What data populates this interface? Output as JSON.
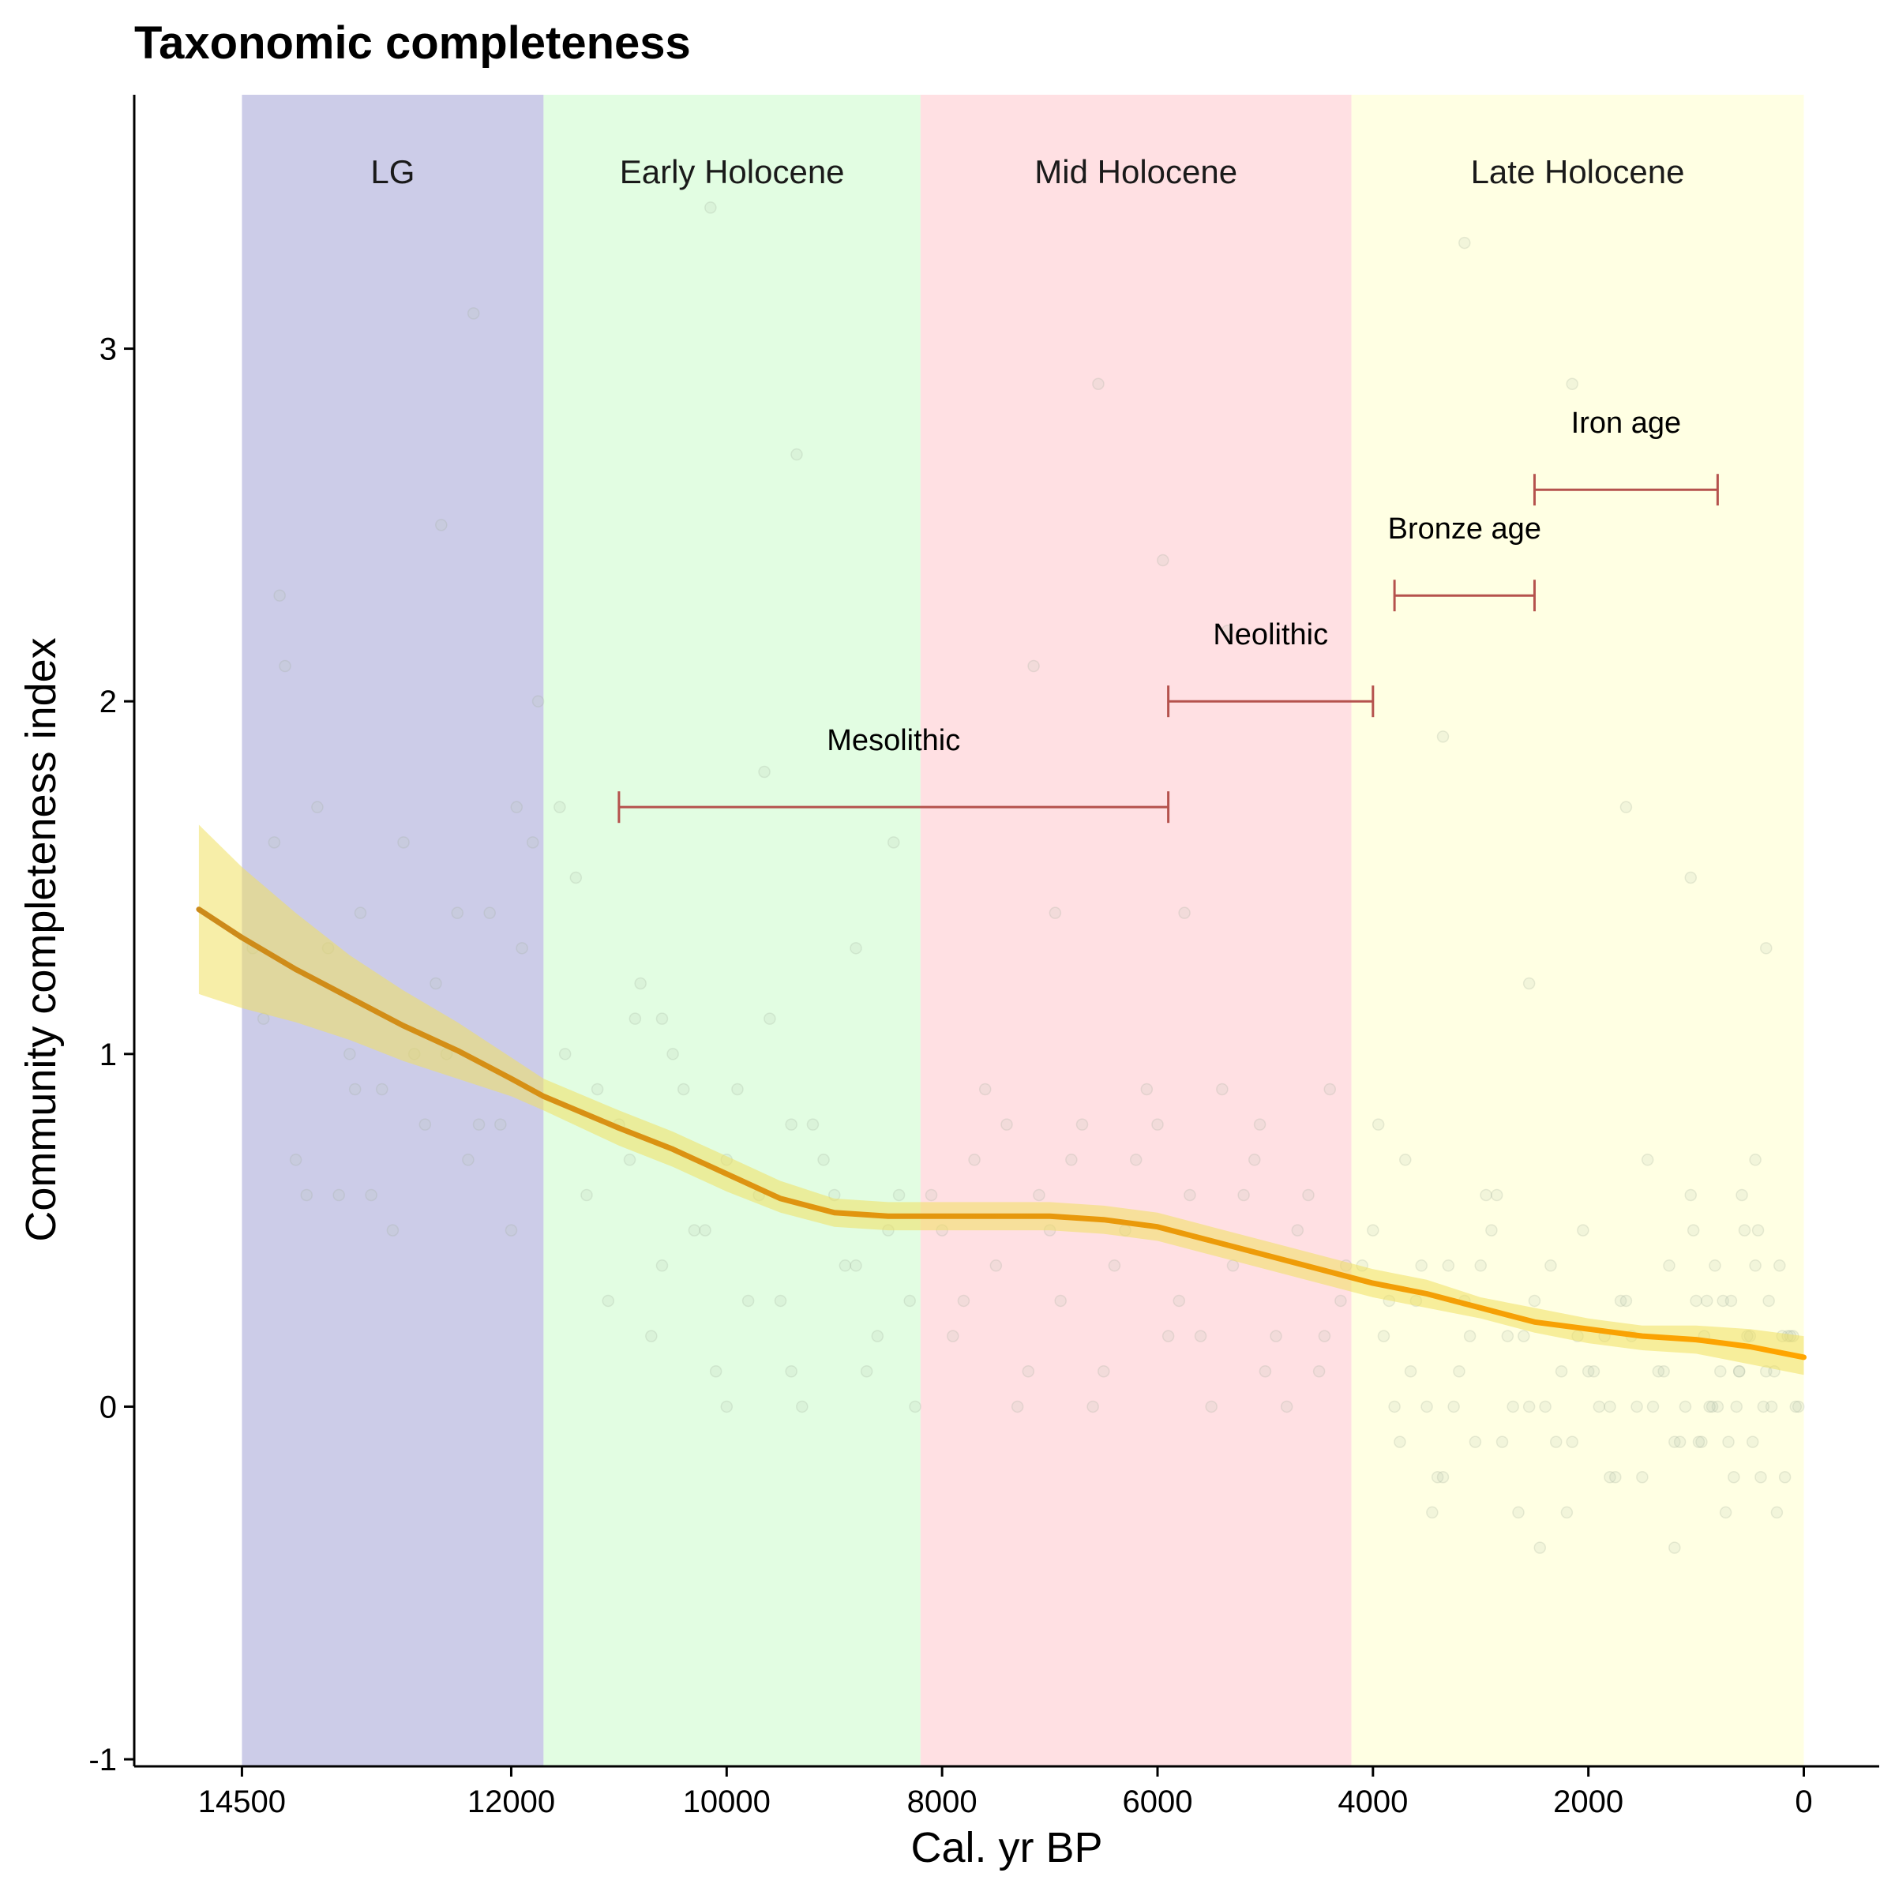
{
  "chart_data": {
    "type": "scatter",
    "title": "Taxonomic completeness",
    "xlabel": "Cal. yr BP",
    "ylabel": "Community completeness index",
    "xlim": [
      15500,
      -700
    ],
    "ylim": [
      -1.02,
      3.72
    ],
    "x_reversed": true,
    "x_ticks": [
      14500,
      12000,
      10000,
      8000,
      6000,
      4000,
      2000,
      0
    ],
    "x_tick_labels": [
      "14500",
      "12000",
      "10000",
      "8000",
      "6000",
      "4000",
      "2000",
      "0"
    ],
    "y_ticks": [
      -1,
      0,
      1,
      2,
      3
    ],
    "y_tick_labels": [
      "-1",
      "0",
      "1",
      "2",
      "3"
    ],
    "grid": false,
    "legend": "none",
    "bands": [
      {
        "label": "LG",
        "x_start": 14500,
        "x_end": 11700,
        "color": "#cccce8"
      },
      {
        "label": "Early Holocene",
        "x_start": 11700,
        "x_end": 8200,
        "color": "#e2fde2"
      },
      {
        "label": "Mid Holocene",
        "x_start": 8200,
        "x_end": 4200,
        "color": "#ffe0e3"
      },
      {
        "label": "Late Holocene",
        "x_start": 4200,
        "x_end": 0,
        "color": "#ffffe3"
      }
    ],
    "periods": [
      {
        "label": "Mesolithic",
        "x_start": 11000,
        "x_end": 5900,
        "y": 1.7
      },
      {
        "label": "Neolithic",
        "x_start": 5900,
        "x_end": 4000,
        "y": 2.0
      },
      {
        "label": "Bronze age",
        "x_start": 3800,
        "x_end": 2500,
        "y": 2.3
      },
      {
        "label": "Iron age",
        "x_start": 2500,
        "x_end": 800,
        "y": 2.6
      }
    ],
    "trend": {
      "x": [
        14900,
        14500,
        14000,
        13500,
        13000,
        12500,
        12000,
        11700,
        11000,
        10500,
        10000,
        9500,
        9000,
        8500,
        8200,
        7500,
        7000,
        6500,
        6000,
        5500,
        5000,
        4500,
        4000,
        3500,
        3000,
        2500,
        2000,
        1500,
        1000,
        500,
        0
      ],
      "y": [
        1.41,
        1.33,
        1.24,
        1.16,
        1.08,
        1.01,
        0.93,
        0.88,
        0.79,
        0.73,
        0.66,
        0.59,
        0.55,
        0.54,
        0.54,
        0.54,
        0.54,
        0.53,
        0.51,
        0.47,
        0.43,
        0.39,
        0.35,
        0.32,
        0.28,
        0.24,
        0.22,
        0.2,
        0.19,
        0.17,
        0.14
      ],
      "lower": [
        1.17,
        1.13,
        1.09,
        1.04,
        0.98,
        0.93,
        0.88,
        0.84,
        0.74,
        0.68,
        0.61,
        0.55,
        0.51,
        0.5,
        0.5,
        0.5,
        0.5,
        0.49,
        0.47,
        0.43,
        0.39,
        0.35,
        0.31,
        0.28,
        0.25,
        0.21,
        0.18,
        0.16,
        0.15,
        0.12,
        0.09
      ],
      "upper": [
        1.65,
        1.53,
        1.4,
        1.28,
        1.18,
        1.09,
        0.99,
        0.93,
        0.84,
        0.78,
        0.71,
        0.64,
        0.59,
        0.58,
        0.58,
        0.58,
        0.58,
        0.57,
        0.55,
        0.51,
        0.47,
        0.43,
        0.39,
        0.36,
        0.31,
        0.28,
        0.25,
        0.23,
        0.23,
        0.22,
        0.2
      ],
      "line_color_start": "#cc8a1a",
      "line_color_end": "#ffa500",
      "band_color": "#f0e060"
    },
    "points": {
      "x": [
        14400,
        14200,
        14000,
        13800,
        13600,
        13400,
        13200,
        13000,
        12800,
        12600,
        12400,
        12200,
        12000,
        11900,
        14300,
        13900,
        13500,
        13100,
        12700,
        12300,
        11950,
        14100,
        13700,
        13300,
        12900,
        12500,
        12100,
        11800,
        11500,
        11300,
        11000,
        10800,
        10600,
        10400,
        10200,
        10000,
        9800,
        9600,
        9400,
        9200,
        9000,
        8800,
        8600,
        8400,
        8250,
        11400,
        11100,
        10900,
        10700,
        10500,
        10300,
        10100,
        9900,
        9700,
        9500,
        9300,
        9100,
        8900,
        8700,
        8500,
        8300,
        11200,
        10600,
        10000,
        9400,
        8800,
        8100,
        7900,
        7700,
        7500,
        7300,
        7100,
        6900,
        6700,
        6500,
        6300,
        6100,
        5900,
        5700,
        5500,
        5300,
        5100,
        4900,
        4700,
        4500,
        4300,
        8000,
        7600,
        7200,
        6800,
        6400,
        6000,
        5600,
        5200,
        4800,
        4400,
        7800,
        7400,
        7000,
        6600,
        6200,
        5800,
        5400,
        5000,
        4600,
        4250,
        6550,
        5950,
        5050,
        4450,
        4100,
        3900,
        3700,
        3500,
        3300,
        3100,
        2900,
        2700,
        2500,
        2300,
        2100,
        1900,
        1700,
        1500,
        1300,
        1100,
        900,
        700,
        500,
        300,
        100,
        4000,
        3800,
        3600,
        3400,
        3200,
        3000,
        2800,
        2600,
        2400,
        2200,
        2000,
        1800,
        1600,
        1400,
        1200,
        1000,
        800,
        600,
        400,
        200,
        50,
        3950,
        3450,
        2950,
        2450,
        1950,
        1450,
        950,
        450,
        150,
        250,
        350,
        550,
        650,
        750,
        850,
        1050,
        1150,
        1250,
        1350,
        1550,
        1650,
        1750,
        1850,
        2050,
        2150,
        2250,
        2350,
        2550,
        2650,
        2750,
        2850,
        3050,
        3150,
        3250,
        3350,
        3550,
        3650,
        3750,
        3850,
        75,
        125,
        175,
        225,
        275,
        325,
        375,
        425,
        475,
        525,
        575,
        625,
        675,
        725,
        775,
        825,
        875,
        925,
        975,
        1025,
        12350,
        11750,
        10850,
        9350,
        6950,
        3150,
        2550,
        1050,
        14150,
        13450,
        12650,
        11550,
        9650,
        7150,
        5350,
        3350,
        1650,
        450,
        10150,
        8450,
        5750,
        2150,
        350,
        1800,
        1200,
        600
      ],
      "y": [
        1.3,
        1.6,
        0.7,
        1.7,
        0.6,
        1.4,
        0.9,
        1.6,
        0.8,
        1.0,
        0.7,
        1.4,
        0.5,
        1.3,
        1.1,
        0.6,
        1.0,
        0.5,
        1.2,
        0.8,
        1.7,
        2.1,
        1.3,
        0.6,
        1.0,
        1.4,
        0.8,
        1.6,
        1.0,
        0.6,
        0.8,
        1.2,
        0.4,
        0.9,
        0.5,
        0.7,
        0.3,
        1.1,
        0.1,
        0.8,
        0.6,
        0.4,
        0.2,
        0.6,
        0.0,
        1.5,
        0.3,
        0.7,
        0.2,
        1.0,
        0.5,
        0.1,
        0.9,
        0.6,
        0.3,
        0.0,
        0.7,
        0.4,
        0.1,
        0.5,
        0.3,
        0.9,
        1.1,
        0.0,
        0.8,
        1.3,
        0.6,
        0.2,
        0.7,
        0.4,
        0.0,
        0.6,
        0.3,
        0.8,
        0.1,
        0.5,
        0.9,
        0.2,
        0.6,
        0.0,
        0.4,
        0.7,
        0.2,
        0.5,
        0.1,
        0.3,
        0.5,
        0.9,
        0.1,
        0.7,
        0.4,
        0.8,
        0.2,
        0.6,
        0.0,
        0.9,
        0.3,
        0.8,
        0.5,
        0.0,
        0.7,
        0.3,
        0.9,
        0.1,
        0.6,
        0.4,
        2.9,
        2.4,
        0.8,
        0.2,
        0.4,
        0.2,
        0.7,
        0.0,
        0.4,
        0.2,
        0.5,
        0.0,
        0.3,
        -0.1,
        0.2,
        0.0,
        0.3,
        -0.2,
        0.1,
        0.0,
        0.3,
        -0.1,
        0.2,
        0.0,
        0.2,
        0.5,
        0.0,
        0.3,
        -0.2,
        0.1,
        0.4,
        -0.1,
        0.2,
        0.0,
        -0.3,
        0.1,
        -0.2,
        0.2,
        0.0,
        -0.1,
        0.3,
        0.0,
        0.1,
        -0.2,
        0.2,
        0.0,
        0.8,
        -0.3,
        0.6,
        -0.4,
        0.1,
        0.7,
        -0.1,
        0.4,
        0.2,
        -0.3,
        0.1,
        0.5,
        -0.2,
        0.3,
        0.0,
        0.6,
        -0.1,
        0.4,
        0.1,
        0.0,
        0.3,
        -0.2,
        0.2,
        0.5,
        -0.1,
        0.1,
        0.4,
        0.0,
        -0.3,
        0.2,
        0.6,
        -0.1,
        0.3,
        0.0,
        -0.2,
        0.4,
        0.1,
        -0.1,
        0.3,
        0.0,
        0.2,
        -0.2,
        0.4,
        0.1,
        0.3,
        0.0,
        0.5,
        -0.1,
        0.2,
        0.6,
        0.0,
        0.3,
        -0.3,
        0.1,
        0.4,
        0.0,
        0.2,
        -0.1,
        0.5,
        3.1,
        2.0,
        1.1,
        2.7,
        1.4,
        3.3,
        1.2,
        1.5,
        2.3,
        0.9,
        2.5,
        1.7,
        1.8,
        2.1,
        2.2,
        1.9,
        1.7,
        0.7,
        3.4,
        1.6,
        1.4,
        2.9,
        1.3,
        0.0,
        -0.4,
        0.1
      ],
      "color": "#b8c8b0"
    }
  }
}
